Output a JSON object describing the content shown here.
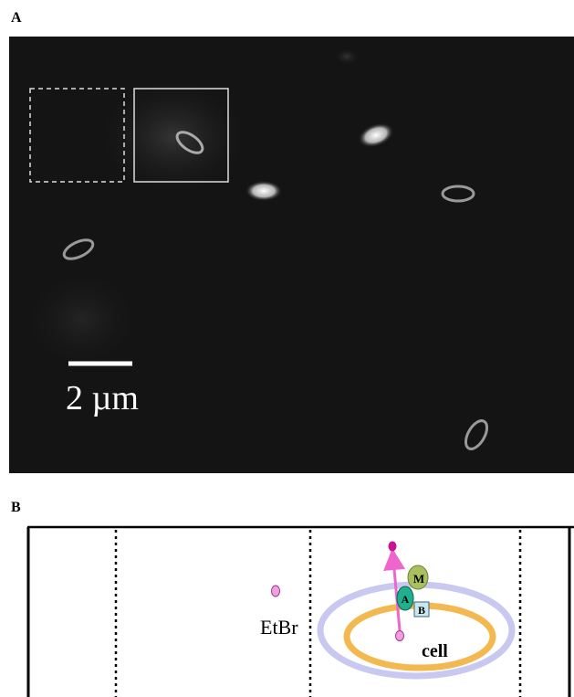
{
  "panels": {
    "a": {
      "label": "A",
      "scale_bar": "2 µm"
    },
    "b": {
      "label": "B",
      "etbr_label": "EtBr",
      "proteins": [
        "M",
        "A",
        "B"
      ],
      "cell_label": "cell"
    }
  }
}
